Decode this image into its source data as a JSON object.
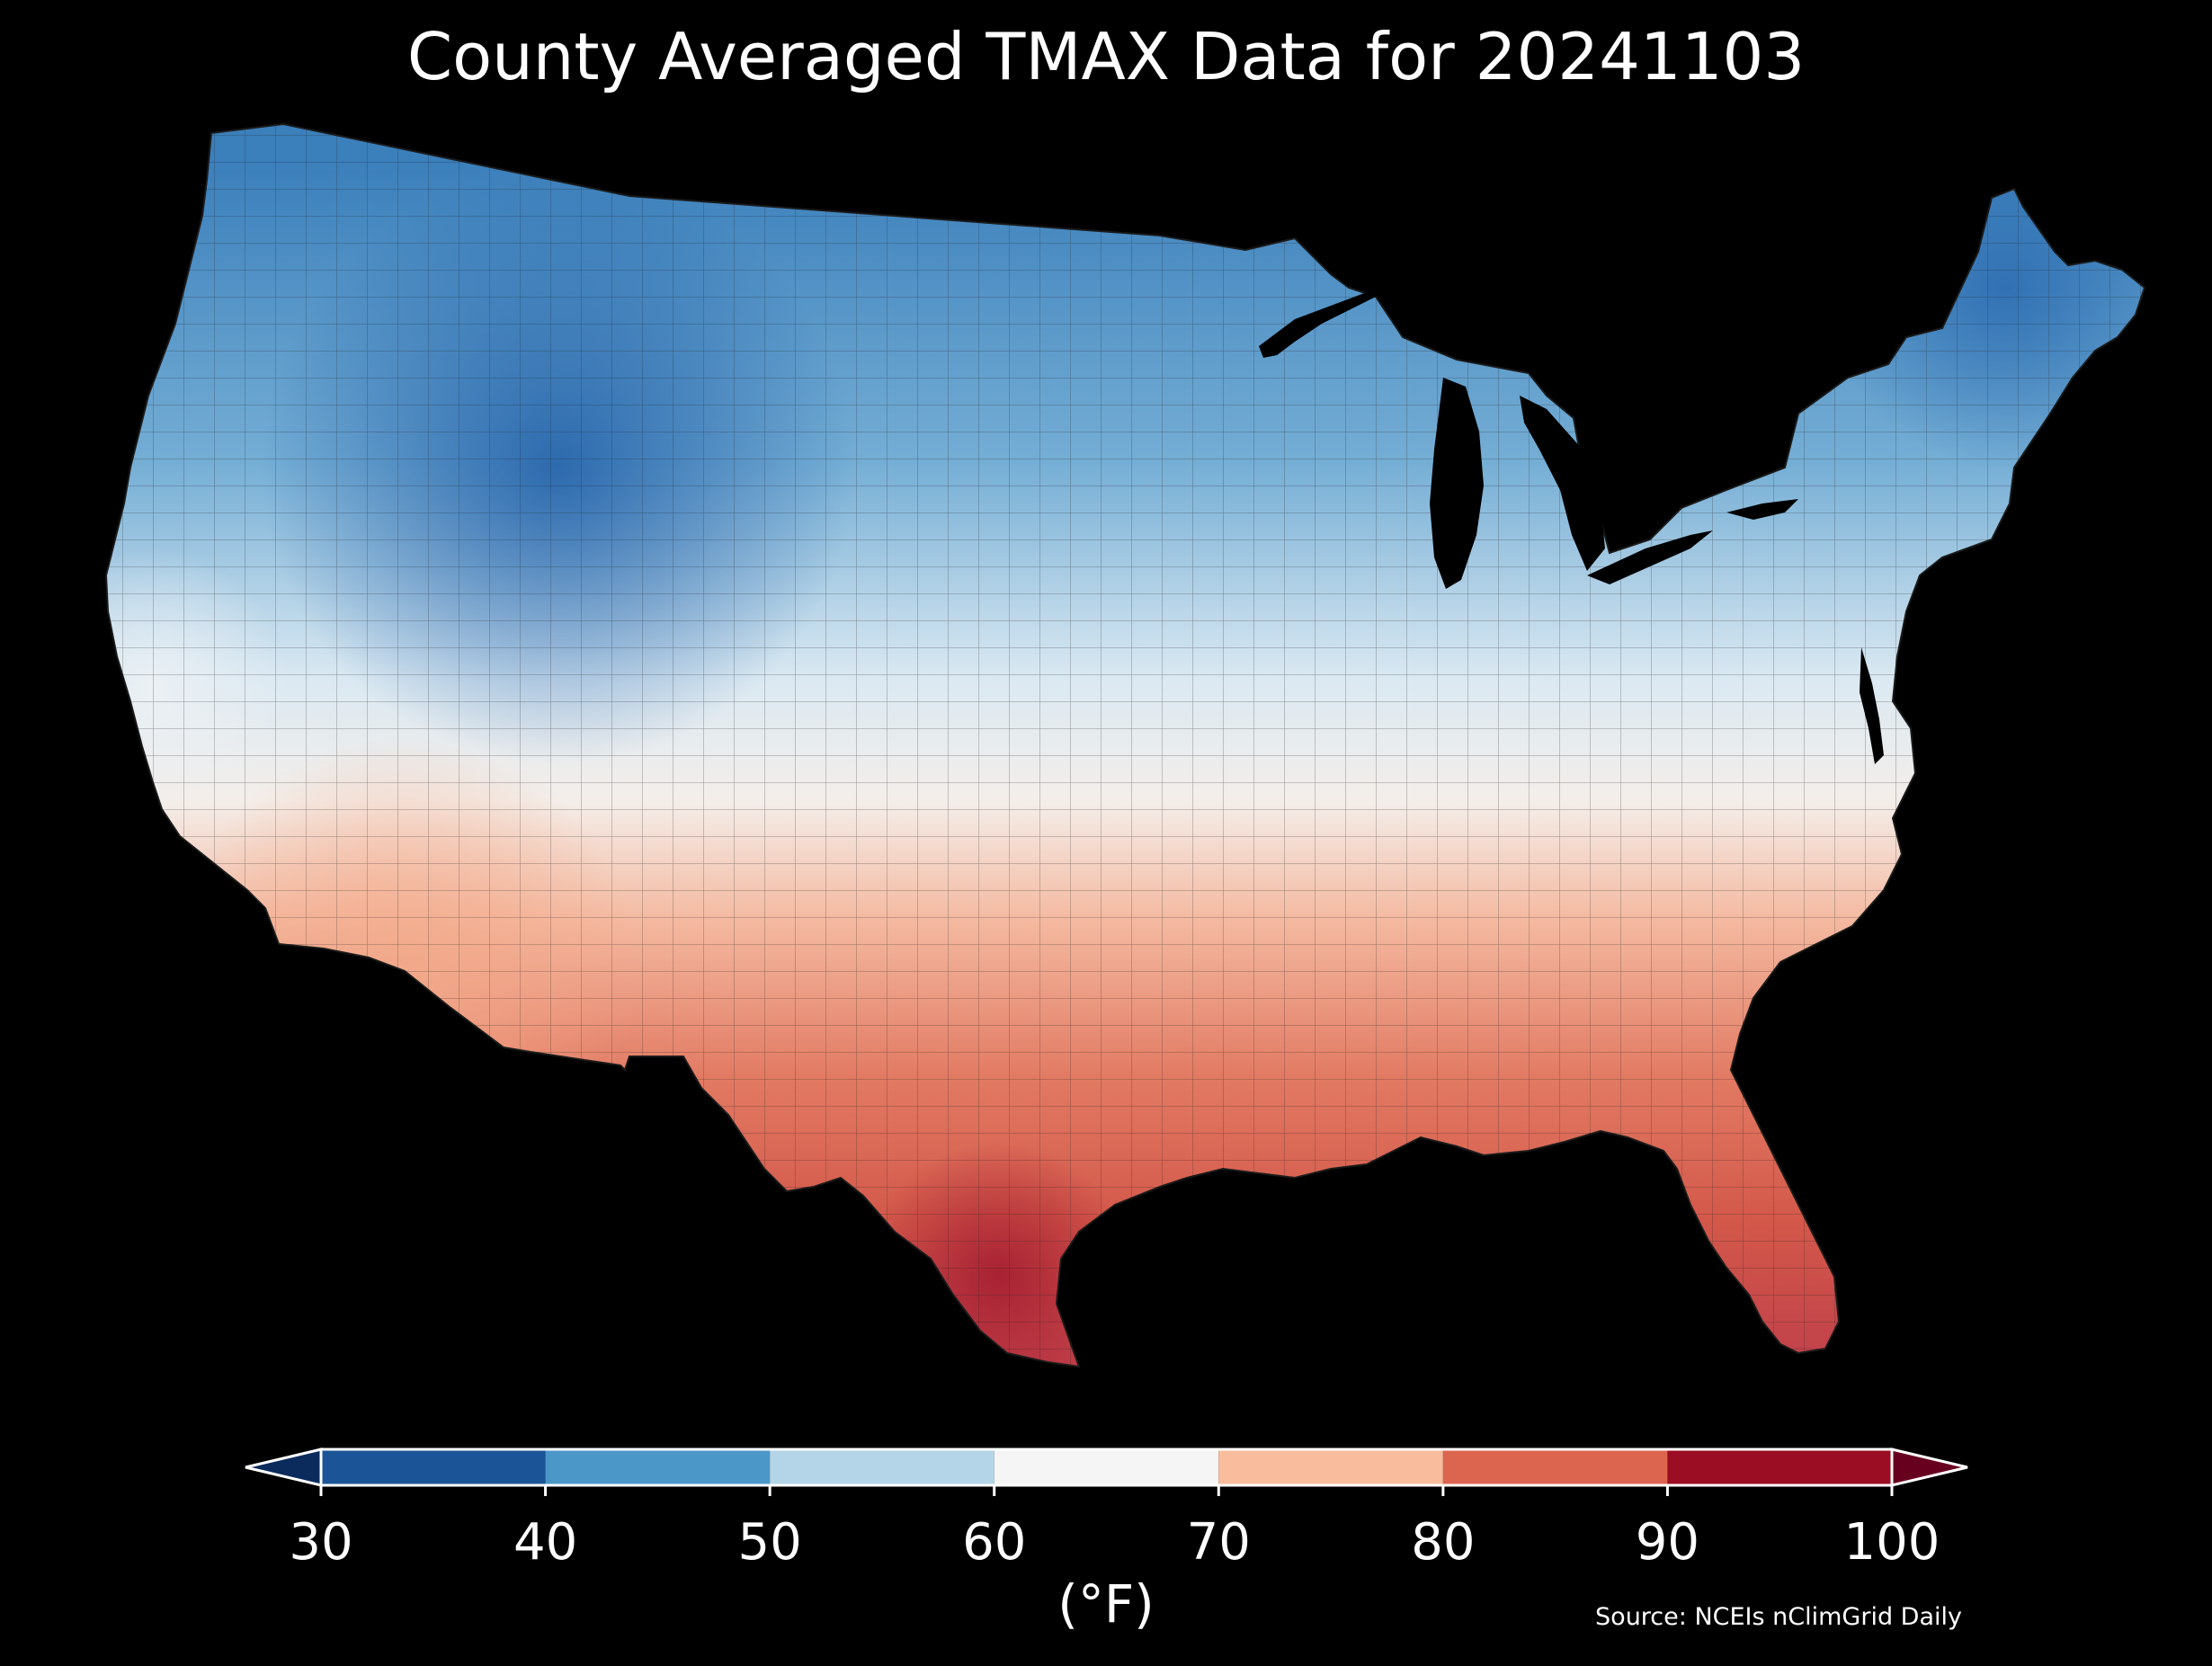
{
  "title": "County Averaged TMAX Data for 20241103",
  "colorbar": {
    "units": "(°F)",
    "ticks": [
      "30",
      "40",
      "50",
      "60",
      "70",
      "80",
      "90",
      "100"
    ],
    "bins": [
      {
        "from": 30,
        "to": 40,
        "color": "#1c5597"
      },
      {
        "from": 40,
        "to": 50,
        "color": "#4b97c8"
      },
      {
        "from": 50,
        "to": 60,
        "color": "#b4d5e8"
      },
      {
        "from": 60,
        "to": 70,
        "color": "#f5f5f5"
      },
      {
        "from": 70,
        "to": 80,
        "color": "#f9bd9e"
      },
      {
        "from": 80,
        "to": 90,
        "color": "#dc6550"
      },
      {
        "from": 90,
        "to": 100,
        "color": "#9b0d23"
      }
    ],
    "under_color": "#0a2b5c",
    "over_color": "#67001f"
  },
  "source": "Source: NCEIs nClimGrid Daily",
  "map": {
    "region": "Contiguous United States",
    "unit": "county",
    "variable": "TMAX",
    "palette": "RdBu_r",
    "background": "#000000"
  }
}
